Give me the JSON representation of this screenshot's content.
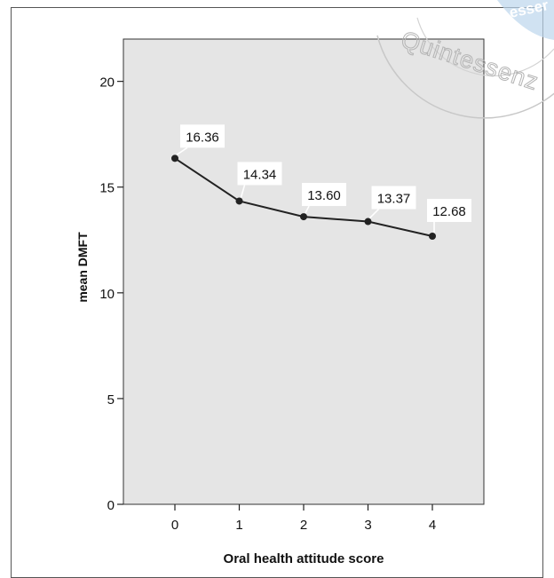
{
  "watermark": {
    "text": "Quintessenz",
    "partial_text": "esser"
  },
  "chart_data": {
    "type": "line",
    "title": "",
    "xlabel": "Oral health attitude score",
    "ylabel": "mean DMFT",
    "x": [
      0,
      1,
      2,
      3,
      4
    ],
    "x_ticks": [
      "0",
      "1",
      "2",
      "3",
      "4"
    ],
    "xlim": [
      -0.8,
      4.8
    ],
    "ylim": [
      0,
      22
    ],
    "y_ticks": [
      "0",
      "5",
      "10",
      "15",
      "20"
    ],
    "series": [
      {
        "values": [
          16.36,
          14.34,
          13.6,
          13.37,
          12.68
        ],
        "labels": [
          "16.36",
          "14.34",
          "13.60",
          "13.37",
          "12.68"
        ]
      }
    ],
    "grid": false,
    "colors": {
      "plot_background": "#e5e5e5",
      "line": "#222222",
      "label_background": "#ffffff"
    }
  }
}
